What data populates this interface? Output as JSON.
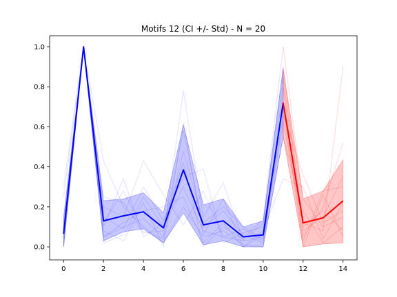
{
  "chart_data": {
    "type": "line",
    "title": "Motifs 12 (CI +/- Std) - N = 20",
    "xlabel": "",
    "ylabel": "",
    "xlim": [
      -0.7,
      14.7
    ],
    "ylim": [
      -0.065,
      1.055
    ],
    "xticks": [
      0,
      2,
      4,
      6,
      8,
      10,
      12,
      14
    ],
    "xtick_labels": [
      "0",
      "2",
      "4",
      "6",
      "8",
      "10",
      "12",
      "14"
    ],
    "yticks": [
      0.0,
      0.2,
      0.4,
      0.6,
      0.8,
      1.0
    ],
    "ytick_labels": [
      "0.0",
      "0.2",
      "0.4",
      "0.6",
      "0.8",
      "1.0"
    ],
    "grid": false,
    "colors": {
      "history": "#0000ff",
      "forecast": "#ff0000"
    },
    "mean_history": {
      "x": [
        0,
        1,
        2,
        3,
        4,
        5,
        6,
        7,
        8,
        9,
        10,
        11
      ],
      "y": [
        0.065,
        1.0,
        0.13,
        0.155,
        0.175,
        0.095,
        0.385,
        0.11,
        0.13,
        0.05,
        0.06,
        0.72
      ]
    },
    "band_history": {
      "x": [
        0,
        1,
        2,
        3,
        4,
        5,
        6,
        7,
        8,
        9,
        10,
        11
      ],
      "lower": [
        0.0,
        0.99,
        0.03,
        0.075,
        0.09,
        0.02,
        0.17,
        0.01,
        0.03,
        0.0,
        0.0,
        0.55
      ],
      "upper": [
        0.15,
        1.0,
        0.23,
        0.24,
        0.27,
        0.17,
        0.61,
        0.21,
        0.24,
        0.1,
        0.13,
        0.89
      ]
    },
    "mean_forecast": {
      "x": [
        11,
        12,
        13,
        14
      ],
      "y": [
        0.72,
        0.12,
        0.145,
        0.23
      ]
    },
    "band_forecast": {
      "x": [
        11,
        12,
        13,
        14
      ],
      "lower": [
        0.55,
        0.0,
        0.015,
        0.02
      ],
      "upper": [
        0.89,
        0.24,
        0.28,
        0.435
      ]
    },
    "motif_history": [
      [
        0.0,
        1.0,
        0.05,
        0.1,
        0.14,
        0.05,
        0.78,
        0.15,
        0.32,
        0.03,
        0.05,
        0.62
      ],
      [
        0.25,
        1.0,
        0.43,
        0.2,
        0.1,
        0.02,
        0.2,
        0.05,
        0.08,
        0.01,
        0.0,
        0.8
      ],
      [
        0.04,
        1.0,
        0.1,
        0.34,
        0.05,
        0.12,
        0.42,
        0.0,
        0.1,
        0.04,
        0.14,
        1.0
      ],
      [
        0.1,
        1.0,
        0.2,
        0.15,
        0.43,
        0.26,
        0.11,
        0.28,
        0.05,
        0.09,
        0.03,
        0.7
      ],
      [
        0.02,
        1.0,
        0.08,
        0.03,
        0.22,
        0.0,
        0.62,
        0.06,
        0.24,
        0.0,
        0.08,
        0.34
      ],
      [
        0.08,
        1.0,
        0.15,
        0.09,
        0.3,
        0.13,
        0.35,
        0.39,
        0.02,
        0.07,
        0.1,
        0.85
      ],
      [
        0.0,
        1.0,
        0.25,
        0.22,
        0.07,
        0.08,
        0.58,
        0.1,
        0.18,
        0.06,
        0.02,
        0.55
      ],
      [
        0.12,
        1.0,
        0.05,
        0.12,
        0.18,
        0.2,
        0.25,
        0.02,
        0.12,
        0.0,
        0.06,
        0.73
      ],
      [
        0.05,
        1.0,
        0.12,
        0.28,
        0.08,
        0.04,
        0.48,
        0.12,
        0.2,
        0.1,
        0.04,
        0.66
      ],
      [
        0.3,
        1.0,
        0.02,
        0.06,
        0.25,
        0.1,
        0.3,
        0.08,
        0.05,
        0.03,
        0.12,
        0.9
      ]
    ],
    "motif_forecast": [
      [
        0.62,
        0.12,
        0.08,
        0.9
      ],
      [
        0.8,
        0.05,
        0.2,
        0.52
      ],
      [
        1.0,
        0.24,
        0.1,
        0.15
      ],
      [
        0.7,
        0.0,
        0.26,
        0.05
      ],
      [
        0.34,
        0.3,
        0.04,
        0.22
      ],
      [
        0.85,
        0.08,
        0.15,
        0.35
      ],
      [
        0.55,
        0.18,
        0.02,
        0.1
      ],
      [
        0.73,
        0.03,
        0.28,
        0.3
      ],
      [
        0.66,
        0.36,
        0.12,
        0.18
      ],
      [
        0.9,
        0.1,
        0.18,
        0.08
      ]
    ]
  }
}
